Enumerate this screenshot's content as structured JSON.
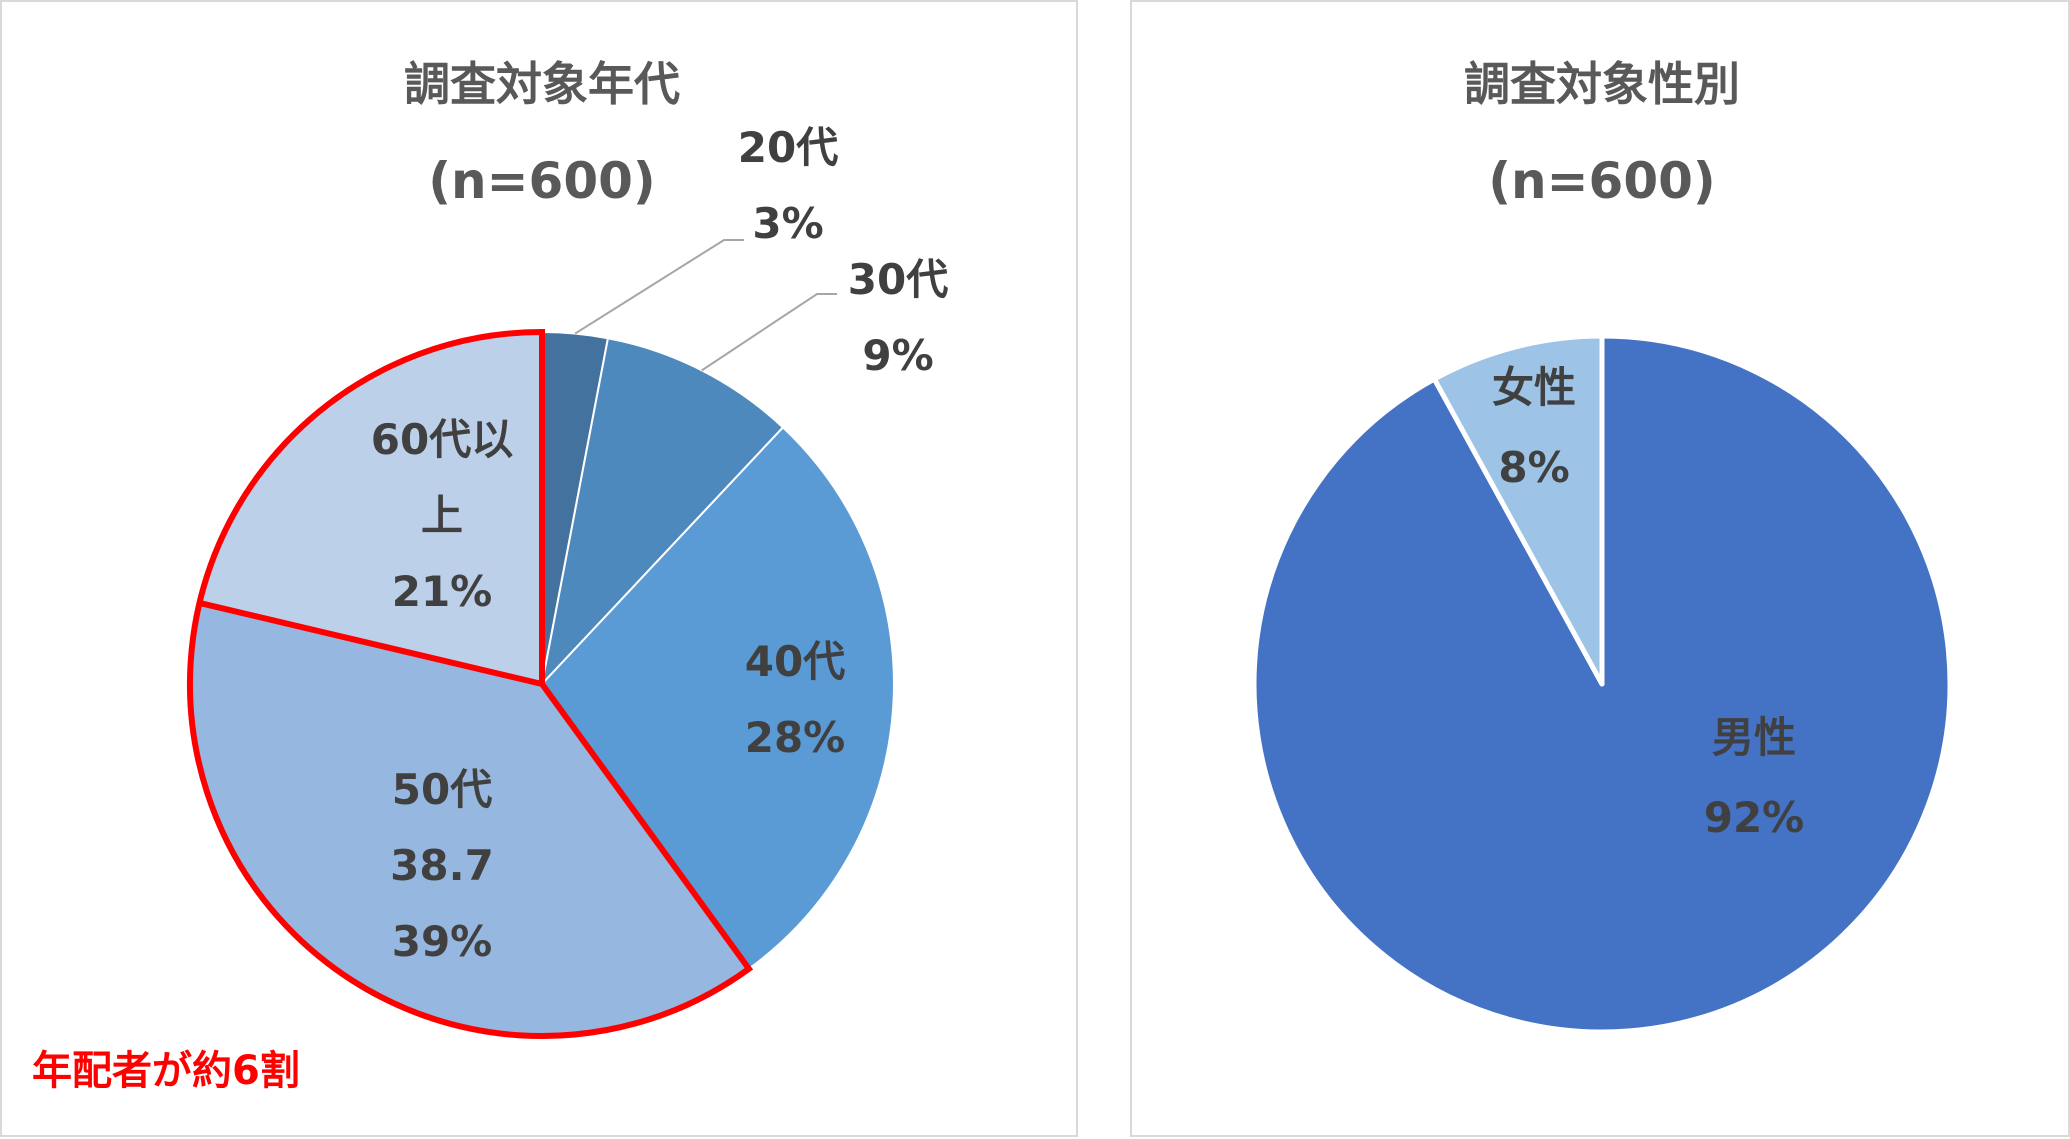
{
  "chart_data": [
    {
      "type": "pie",
      "title": "調査対象年代",
      "subtitle": "(n=600)",
      "slices": [
        {
          "label": "20代",
          "value": 3,
          "pct_text": "3%",
          "color": "#44729f"
        },
        {
          "label": "30代",
          "value": 9,
          "pct_text": "9%",
          "color": "#4d89bd"
        },
        {
          "label": "40代",
          "value": 28,
          "pct_text": "28%",
          "color": "#5b9bd5"
        },
        {
          "label": "50代",
          "extra": "38.7",
          "value": 38.7,
          "pct_text": "39%",
          "color": "#96b7df"
        },
        {
          "label_lines": [
            "60代以",
            "上"
          ],
          "value": 21.3,
          "pct_text": "21%",
          "color": "#bdd0ea"
        }
      ],
      "highlight": {
        "slices": [
          3,
          4
        ],
        "color": "#ff0000"
      },
      "annotation": "年配者が約6割"
    },
    {
      "type": "pie",
      "title": "調査対象性別",
      "subtitle": "(n=600)",
      "slices": [
        {
          "label": "男性",
          "value": 92,
          "pct_text": "92%",
          "color": "#4472c4"
        },
        {
          "label": "女性",
          "value": 8,
          "pct_text": "8%",
          "color": "#9dc3e6"
        }
      ]
    }
  ]
}
